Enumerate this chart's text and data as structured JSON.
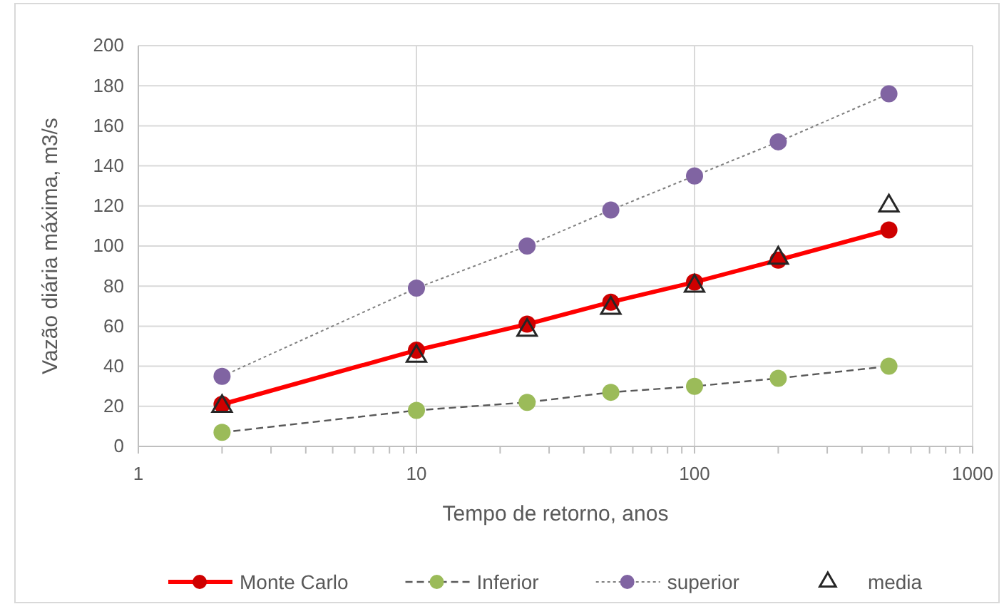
{
  "chart_data": {
    "type": "line",
    "xlabel": "Tempo de retorno, anos",
    "ylabel": "Vazão diária máxima, m3/s",
    "x": [
      2,
      10,
      25,
      50,
      100,
      200,
      500
    ],
    "xlim": [
      1,
      1000
    ],
    "xticks": [
      1,
      {
        "value": 2,
        "label": null
      },
      {
        "value": 3,
        "label": null
      },
      {
        "value": 4,
        "label": null
      },
      {
        "value": 5,
        "label": null
      },
      {
        "value": 6,
        "label": null
      },
      {
        "value": 7,
        "label": null
      },
      {
        "value": 8,
        "label": null
      },
      {
        "value": 9,
        "label": null
      },
      10,
      {
        "value": 20,
        "label": null
      },
      {
        "value": 30,
        "label": null
      },
      {
        "value": 40,
        "label": null
      },
      {
        "value": 50,
        "label": null
      },
      {
        "value": 60,
        "label": null
      },
      {
        "value": 70,
        "label": null
      },
      {
        "value": 80,
        "label": null
      },
      {
        "value": 90,
        "label": null
      },
      100,
      {
        "value": 200,
        "label": null
      },
      {
        "value": 300,
        "label": null
      },
      {
        "value": 400,
        "label": null
      },
      {
        "value": 500,
        "label": null
      },
      {
        "value": 600,
        "label": null
      },
      {
        "value": 700,
        "label": null
      },
      {
        "value": 800,
        "label": null
      },
      {
        "value": 900,
        "label": null
      },
      1000
    ],
    "ylim": [
      0,
      200
    ],
    "yticks": [
      0,
      20,
      40,
      60,
      80,
      100,
      120,
      140,
      160,
      180,
      200
    ],
    "log": "x",
    "grid": true,
    "legend": "bottom",
    "series": [
      {
        "name": "Monte Carlo",
        "color": "#ff0000",
        "marker": "circle",
        "line_style": "solid",
        "values": [
          21,
          48,
          61,
          72,
          82,
          93,
          108
        ]
      },
      {
        "name": "Inferior",
        "color": "#9bbb59",
        "marker": "circle",
        "line_style": "dashed",
        "values": [
          7,
          18,
          22,
          27,
          30,
          34,
          40
        ]
      },
      {
        "name": "superior",
        "color": "#8064a2",
        "marker": "circle",
        "line_style": "dotted",
        "values": [
          35,
          79,
          100,
          118,
          135,
          152,
          176
        ]
      },
      {
        "name": "media",
        "type": "scatter",
        "color": "#262626",
        "marker": "triangle",
        "values": [
          20,
          45,
          58,
          69,
          80,
          94,
          120
        ]
      }
    ]
  }
}
